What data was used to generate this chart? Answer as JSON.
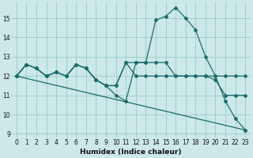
{
  "xlabel": "Humidex (Indice chaleur)",
  "bg_color": "#cce8e8",
  "grid_color": "#99cccc",
  "line_color": "#1a6b6b",
  "xlim": [
    -0.5,
    23.5
  ],
  "ylim": [
    8.8,
    15.8
  ],
  "yticks": [
    9,
    10,
    11,
    12,
    13,
    14,
    15
  ],
  "xticks": [
    0,
    1,
    2,
    3,
    4,
    5,
    6,
    7,
    8,
    9,
    10,
    11,
    12,
    13,
    14,
    15,
    16,
    17,
    18,
    19,
    20,
    21,
    22,
    23
  ],
  "line1_x": [
    0,
    1,
    2,
    3,
    4,
    5,
    6,
    7,
    8,
    9,
    10,
    11,
    12,
    13,
    14,
    15,
    16,
    17,
    18,
    19,
    20,
    21,
    22,
    23
  ],
  "line1_y": [
    12.0,
    12.6,
    12.4,
    12.0,
    12.2,
    12.0,
    12.6,
    12.4,
    11.8,
    11.5,
    11.0,
    10.7,
    12.7,
    12.7,
    14.9,
    15.1,
    15.55,
    15.0,
    14.4,
    13.0,
    12.0,
    10.7,
    9.8,
    9.2
  ],
  "line2_x": [
    0,
    1,
    2,
    3,
    4,
    5,
    6,
    7,
    8,
    9,
    10,
    11,
    12,
    13,
    14,
    15,
    16,
    17,
    18,
    19,
    20,
    21,
    22,
    23
  ],
  "line2_y": [
    12.0,
    12.6,
    12.4,
    12.0,
    12.2,
    12.0,
    12.6,
    12.4,
    11.8,
    11.5,
    11.5,
    12.7,
    12.7,
    12.7,
    12.7,
    12.7,
    12.0,
    12.0,
    12.0,
    12.0,
    12.0,
    12.0,
    12.0,
    12.0
  ],
  "line3_x": [
    0,
    23
  ],
  "line3_y": [
    12.0,
    9.2
  ],
  "line4_x": [
    0,
    1,
    2,
    3,
    4,
    5,
    6,
    7,
    8,
    9,
    10,
    11,
    12,
    13,
    14,
    15,
    16,
    17,
    18,
    19,
    20,
    21,
    22,
    23
  ],
  "line4_y": [
    12.0,
    12.6,
    12.4,
    12.0,
    12.2,
    12.0,
    12.6,
    12.4,
    11.8,
    11.5,
    11.5,
    12.7,
    12.0,
    12.0,
    12.0,
    12.0,
    12.0,
    12.0,
    12.0,
    12.0,
    11.8,
    11.0,
    11.0,
    11.0
  ]
}
